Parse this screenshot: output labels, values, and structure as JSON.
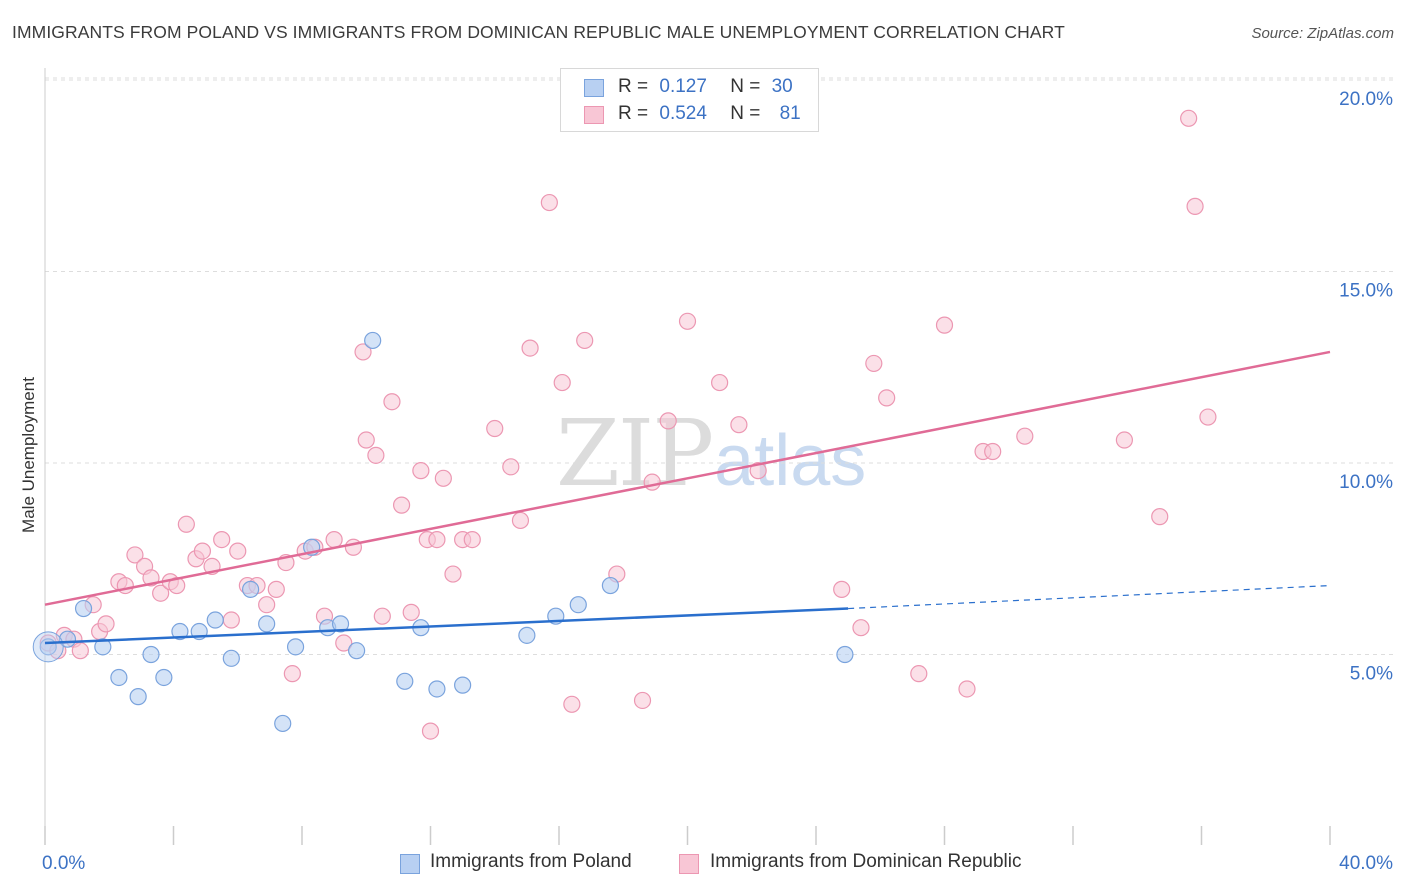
{
  "title": "IMMIGRANTS FROM POLAND VS IMMIGRANTS FROM DOMINICAN REPUBLIC MALE UNEMPLOYMENT CORRELATION CHART",
  "source": "Source: ZipAtlas.com",
  "watermark": {
    "zip": "ZIP",
    "atlas": "atlas"
  },
  "legend": {
    "rows": [
      {
        "r_label": "R =",
        "r_value": "0.127",
        "n_label": "N =",
        "n_value": "30"
      },
      {
        "r_label": "R =",
        "r_value": "0.524",
        "n_label": "N =",
        "n_value": "81"
      }
    ]
  },
  "colors": {
    "poland_fill": "#b8d0f2",
    "poland_stroke": "#7aa3dd",
    "poland_line": "#2a6fcd",
    "dr_fill": "#f8c6d5",
    "dr_stroke": "#ec97b2",
    "dr_line": "#e06b96",
    "axis_text": "#3c72c4",
    "grid": "#dddddd"
  },
  "chart_data": {
    "type": "scatter",
    "title": "IMMIGRANTS FROM POLAND VS IMMIGRANTS FROM DOMINICAN REPUBLIC MALE UNEMPLOYMENT CORRELATION CHART",
    "xlabel": "",
    "ylabel": "Male Unemployment",
    "xlim": [
      0,
      40
    ],
    "ylim": [
      0,
      20.5
    ],
    "x_tick_labels": [
      "0.0%",
      "40.0%"
    ],
    "y_ticks": [
      5,
      10,
      15,
      20
    ],
    "y_tick_labels": [
      "5.0%",
      "10.0%",
      "15.0%",
      "20.0%"
    ],
    "grid": true,
    "legend_position": "top-center",
    "series": [
      {
        "name": "Immigrants from Poland",
        "color": "#7aa3dd",
        "r": 0.127,
        "n": 30,
        "trend": {
          "x": [
            0,
            25
          ],
          "y": [
            5.3,
            6.2
          ],
          "dashed_to": [
            40,
            6.8
          ]
        },
        "points": [
          [
            0.1,
            5.2
          ],
          [
            0.7,
            5.4
          ],
          [
            1.2,
            6.2
          ],
          [
            1.8,
            5.2
          ],
          [
            2.3,
            4.4
          ],
          [
            2.9,
            3.9
          ],
          [
            3.3,
            5.0
          ],
          [
            3.7,
            4.4
          ],
          [
            4.2,
            5.6
          ],
          [
            4.8,
            5.6
          ],
          [
            5.3,
            5.9
          ],
          [
            5.8,
            4.9
          ],
          [
            6.4,
            6.7
          ],
          [
            6.9,
            5.8
          ],
          [
            7.4,
            3.2
          ],
          [
            7.8,
            5.2
          ],
          [
            8.3,
            7.8
          ],
          [
            8.8,
            5.7
          ],
          [
            9.2,
            5.8
          ],
          [
            9.7,
            5.1
          ],
          [
            10.2,
            13.2
          ],
          [
            11.2,
            4.3
          ],
          [
            11.7,
            5.7
          ],
          [
            12.2,
            4.1
          ],
          [
            13.0,
            4.2
          ],
          [
            15.0,
            5.5
          ],
          [
            15.9,
            6.0
          ],
          [
            16.6,
            6.3
          ],
          [
            17.6,
            6.8
          ],
          [
            24.9,
            5.0
          ]
        ]
      },
      {
        "name": "Immigrants from Dominican Republic",
        "color": "#ec97b2",
        "r": 0.524,
        "n": 81,
        "trend": {
          "x": [
            0,
            40
          ],
          "y": [
            6.3,
            12.9
          ]
        },
        "points": [
          [
            0.1,
            5.3
          ],
          [
            0.4,
            5.1
          ],
          [
            0.6,
            5.5
          ],
          [
            0.9,
            5.4
          ],
          [
            1.1,
            5.1
          ],
          [
            1.5,
            6.3
          ],
          [
            1.7,
            5.6
          ],
          [
            1.9,
            5.8
          ],
          [
            2.3,
            6.9
          ],
          [
            2.5,
            6.8
          ],
          [
            2.8,
            7.6
          ],
          [
            3.1,
            7.3
          ],
          [
            3.3,
            7.0
          ],
          [
            3.6,
            6.6
          ],
          [
            3.9,
            6.9
          ],
          [
            4.1,
            6.8
          ],
          [
            4.4,
            8.4
          ],
          [
            4.7,
            7.5
          ],
          [
            4.9,
            7.7
          ],
          [
            5.2,
            7.3
          ],
          [
            5.5,
            8.0
          ],
          [
            5.8,
            5.9
          ],
          [
            6.0,
            7.7
          ],
          [
            6.3,
            6.8
          ],
          [
            6.6,
            6.8
          ],
          [
            6.9,
            6.3
          ],
          [
            7.2,
            6.7
          ],
          [
            7.5,
            7.4
          ],
          [
            7.7,
            4.5
          ],
          [
            8.1,
            7.7
          ],
          [
            8.4,
            7.8
          ],
          [
            8.7,
            6.0
          ],
          [
            9.0,
            8.0
          ],
          [
            9.3,
            5.3
          ],
          [
            9.6,
            7.8
          ],
          [
            9.9,
            12.9
          ],
          [
            10.0,
            10.6
          ],
          [
            10.3,
            10.2
          ],
          [
            10.5,
            6.0
          ],
          [
            10.8,
            11.6
          ],
          [
            11.1,
            8.9
          ],
          [
            11.4,
            6.1
          ],
          [
            11.7,
            9.8
          ],
          [
            11.9,
            8.0
          ],
          [
            12.2,
            8.0
          ],
          [
            12.4,
            9.6
          ],
          [
            12.7,
            7.1
          ],
          [
            13.0,
            8.0
          ],
          [
            13.3,
            8.0
          ],
          [
            14.0,
            10.9
          ],
          [
            14.5,
            9.9
          ],
          [
            14.8,
            8.5
          ],
          [
            15.1,
            13.0
          ],
          [
            15.7,
            16.8
          ],
          [
            16.1,
            12.1
          ],
          [
            16.4,
            3.7
          ],
          [
            16.8,
            13.2
          ],
          [
            17.8,
            7.1
          ],
          [
            18.6,
            3.8
          ],
          [
            18.9,
            9.5
          ],
          [
            19.4,
            11.1
          ],
          [
            20.0,
            13.7
          ],
          [
            21.0,
            12.1
          ],
          [
            21.6,
            11.0
          ],
          [
            22.2,
            9.8
          ],
          [
            24.8,
            6.7
          ],
          [
            25.4,
            5.7
          ],
          [
            25.8,
            12.6
          ],
          [
            26.2,
            11.7
          ],
          [
            27.2,
            4.5
          ],
          [
            28.0,
            13.6
          ],
          [
            28.7,
            4.1
          ],
          [
            29.2,
            10.3
          ],
          [
            29.5,
            10.3
          ],
          [
            30.5,
            10.7
          ],
          [
            33.6,
            10.6
          ],
          [
            34.7,
            8.6
          ],
          [
            35.6,
            19.0
          ],
          [
            35.8,
            16.7
          ],
          [
            36.2,
            11.2
          ],
          [
            12.0,
            3.0
          ]
        ]
      }
    ]
  },
  "bottom_legend": {
    "poland": "Immigrants from Poland",
    "dr": "Immigrants from Dominican Republic"
  }
}
